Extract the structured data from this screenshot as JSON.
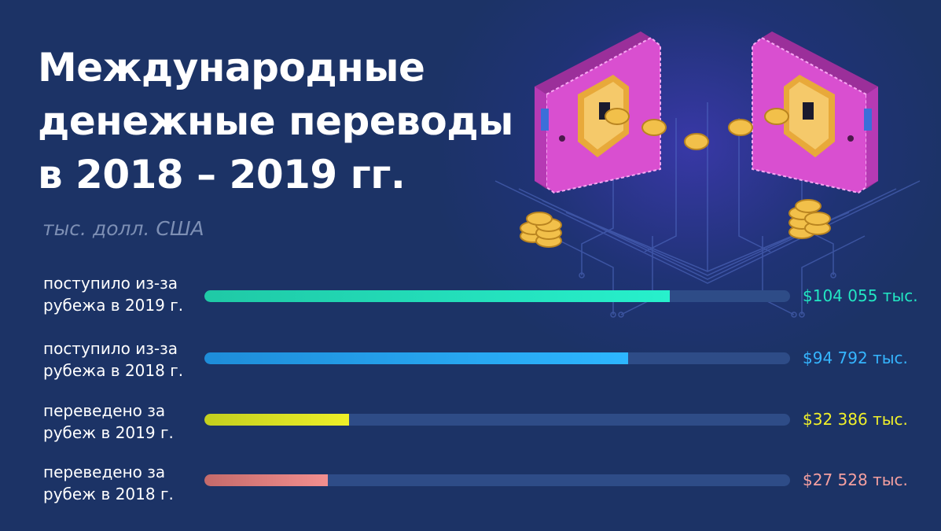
{
  "header": {
    "title_lines": [
      "Международные",
      "денежные переводы",
      "в 2018 – 2019 гг."
    ],
    "subtitle": "тыс. долл. США"
  },
  "chart_data": {
    "type": "bar",
    "orientation": "horizontal",
    "title": "Международные денежные переводы в 2018 – 2019 гг.",
    "unit": "тыс. долл. США",
    "xlim": [
      0,
      131000
    ],
    "categories": [
      [
        "поступило из-за",
        "рубежа в 2019 г."
      ],
      [
        "поступило из-за",
        "рубежа в 2018 г."
      ],
      [
        "переведено за",
        "рубеж в 2019 г."
      ],
      [
        "переведено за",
        "рубеж в 2018 г."
      ]
    ],
    "values": [
      104055,
      94792,
      32386,
      27528
    ],
    "data_labels": [
      "$104 055 тыс.",
      "$94 792 тыс.",
      "$32 386 тыс.",
      "$27 528 тыс."
    ],
    "colors": [
      [
        "#1fc9a6",
        "#27f0cc"
      ],
      [
        "#1e8dd9",
        "#2db6ff"
      ],
      [
        "#c3cf1e",
        "#eef028"
      ],
      [
        "#c46a6a",
        "#f28f8f"
      ]
    ],
    "label_colors": [
      "#22e6c3",
      "#35b5ff",
      "#f0f02a",
      "#f5a0a0"
    ],
    "track_color": "#2e4c87",
    "grid": false,
    "legend": "none"
  },
  "illustration": {
    "description_icons": [
      "wallet-icon",
      "shield-icon",
      "coin-icon",
      "circuit-board"
    ],
    "colors": {
      "wallet": "#d94fd0",
      "shield": "#e8a93a",
      "coin": "#f2c04a"
    }
  }
}
